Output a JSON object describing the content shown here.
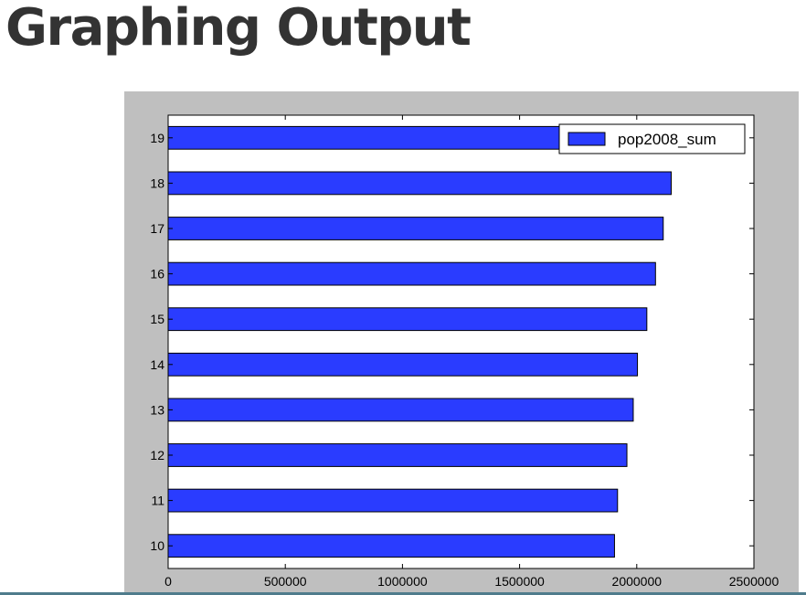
{
  "page": {
    "title": "Graphing Output"
  },
  "chart_data": {
    "type": "bar",
    "orientation": "horizontal",
    "categories": [
      "10",
      "11",
      "12",
      "13",
      "14",
      "15",
      "16",
      "17",
      "18",
      "19"
    ],
    "series": [
      {
        "name": "pop2008_sum",
        "values": [
          1905000,
          1918000,
          1958000,
          1985000,
          2003000,
          2043000,
          2080000,
          2113000,
          2147000,
          2170000
        ],
        "color": "#2a3cff"
      }
    ],
    "xticks": [
      "0",
      "500000",
      "1000000",
      "1500000",
      "2000000",
      "2500000"
    ],
    "xlim": [
      0,
      2500000
    ],
    "title": "",
    "xlabel": "",
    "ylabel": "",
    "grid": false,
    "legend_position": "top-right",
    "colors": {
      "figure_background": "#bfbfbf",
      "plot_background": "#ffffff",
      "title_text": "#333333",
      "bar_edge": "#000000"
    }
  }
}
